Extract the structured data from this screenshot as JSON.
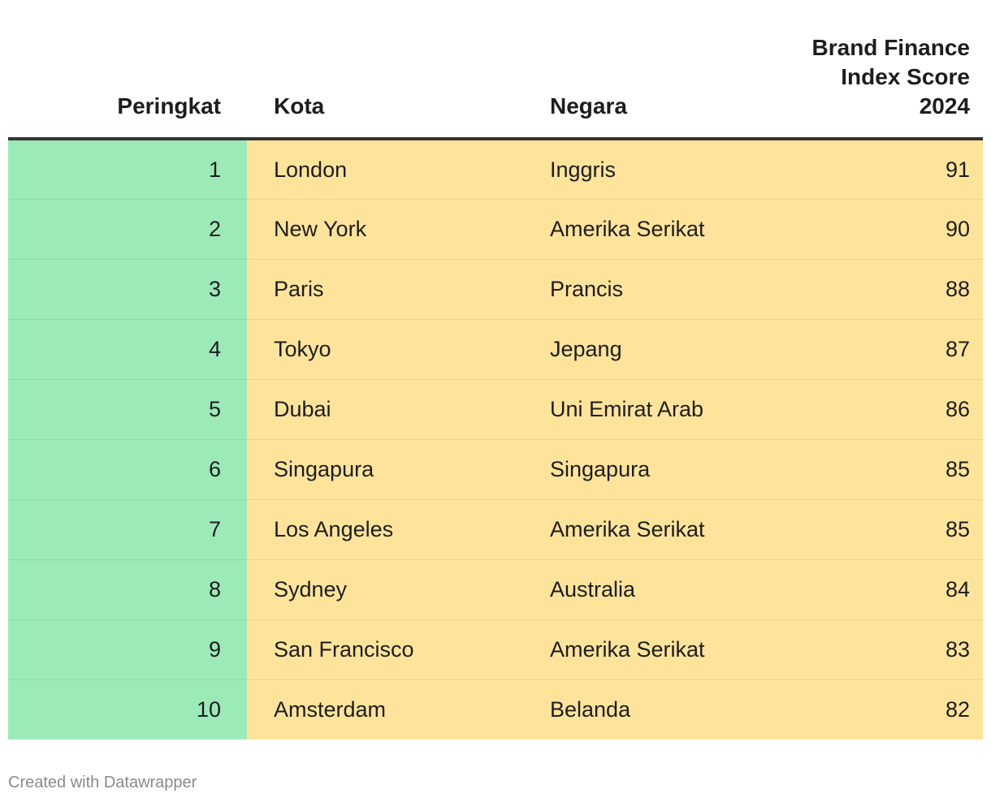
{
  "chart_data": {
    "type": "table",
    "columns": [
      "Peringkat",
      "Kota",
      "Negara",
      "Brand Finance Index Score 2024"
    ],
    "rows": [
      {
        "rank": "1",
        "city": "London",
        "country": "Inggris",
        "score": 91
      },
      {
        "rank": "2",
        "city": "New York",
        "country": "Amerika Serikat",
        "score": 90
      },
      {
        "rank": "3",
        "city": "Paris",
        "country": "Prancis",
        "score": 88
      },
      {
        "rank": "4",
        "city": "Tokyo",
        "country": "Jepang",
        "score": 87
      },
      {
        "rank": "5",
        "city": "Dubai",
        "country": "Uni Emirat Arab",
        "score": 86
      },
      {
        "rank": "6",
        "city": "Singapura",
        "country": "Singapura",
        "score": 85
      },
      {
        "rank": "7",
        "city": "Los Angeles",
        "country": "Amerika Serikat",
        "score": 85
      },
      {
        "rank": "8",
        "city": "Sydney",
        "country": "Australia",
        "score": 84
      },
      {
        "rank": "9",
        "city": "San Francisco",
        "country": "Amerika Serikat",
        "score": 83
      },
      {
        "rank": "10",
        "city": "Amsterdam",
        "country": "Belanda",
        "score": 82
      }
    ]
  },
  "header": {
    "rank": "Peringkat",
    "city": "Kota",
    "country": "Negara",
    "score_line1": "Brand Finance",
    "score_line2": "Index Score",
    "score_line3": "2024"
  },
  "colors": {
    "rank_column": "#9ceab8",
    "other_columns": "#fee49b",
    "header_rule": "#333333"
  },
  "footer": {
    "credit": "Created with Datawrapper"
  }
}
